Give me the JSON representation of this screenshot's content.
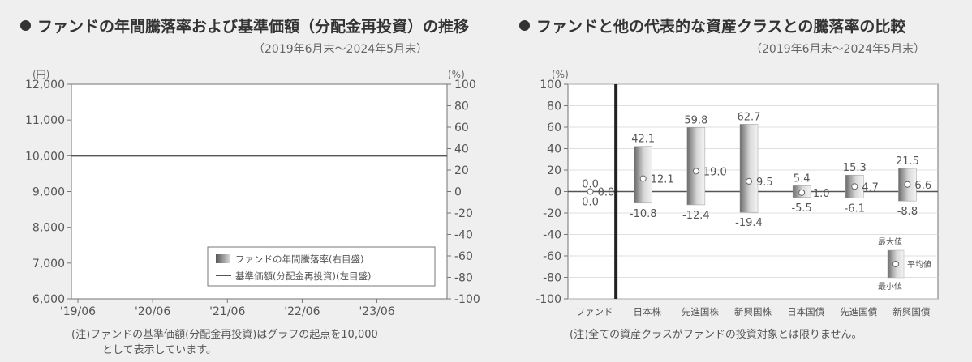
{
  "left": {
    "title": "ファンドの年間騰落率および基準価額（分配金再投資）の推移",
    "period": "（2019年6月末〜2024年5月末）",
    "left_unit": "(円)",
    "right_unit": "(%)",
    "note_line1": "(注)ファンドの基準価額(分配金再投資)はグラフの起点を10,000",
    "note_line2": "として表示しています。",
    "legend_bar": "ファンドの年間騰落率(右目盛)",
    "legend_line": "基準価額(分配金再投資)(左目盛)"
  },
  "right": {
    "title": "ファンドと他の代表的な資産クラスとの騰落率の比較",
    "period": "（2019年6月末〜2024年5月末）",
    "unit": "(%)",
    "note": "(注)全ての資産クラスがファンドの投資対象とは限りません。",
    "key_max": "最大値",
    "key_avg": "平均値",
    "key_min": "最小値"
  },
  "chart_data": [
    {
      "type": "line",
      "x_ticks": [
        "'19/06",
        "'20/06",
        "'21/06",
        "'22/06",
        "'23/06"
      ],
      "y_left_ticks": [
        "12,000",
        "11,000",
        "10,000",
        "9,000",
        "8,000",
        "7,000",
        "6,000"
      ],
      "y_left_lim": [
        6000,
        12000
      ],
      "y_right_ticks": [
        "100",
        "80",
        "60",
        "40",
        "20",
        "0",
        "-20",
        "-40",
        "-60",
        "-80",
        "-100"
      ],
      "y_right_lim": [
        -100,
        100
      ],
      "series": [
        {
          "name": "基準価額(分配金再投資)(左目盛)",
          "values": [
            10000,
            10000,
            10000,
            10000,
            10000,
            10000
          ],
          "color": "#555555"
        },
        {
          "name": "ファンドの年間騰落率(右目盛)",
          "values": [],
          "color": "#888888"
        }
      ],
      "legend_position": "bottom-right"
    },
    {
      "type": "bar",
      "categories": [
        "ファンド",
        "日本株",
        "先進国株",
        "新興国株",
        "日本国債",
        "先進国債",
        "新興国債"
      ],
      "max": [
        0.0,
        42.1,
        59.8,
        62.7,
        5.4,
        15.3,
        21.5
      ],
      "avg": [
        0.0,
        12.1,
        19.0,
        9.5,
        -1.0,
        4.7,
        6.6
      ],
      "min": [
        0.0,
        -10.8,
        -12.4,
        -19.4,
        -5.5,
        -6.1,
        -8.8
      ],
      "ylim": [
        -100,
        100
      ],
      "y_ticks": [
        "100",
        "80",
        "60",
        "40",
        "20",
        "0",
        "-20",
        "-40",
        "-60",
        "-80",
        "-100"
      ],
      "legend_position": "bottom-right"
    }
  ]
}
